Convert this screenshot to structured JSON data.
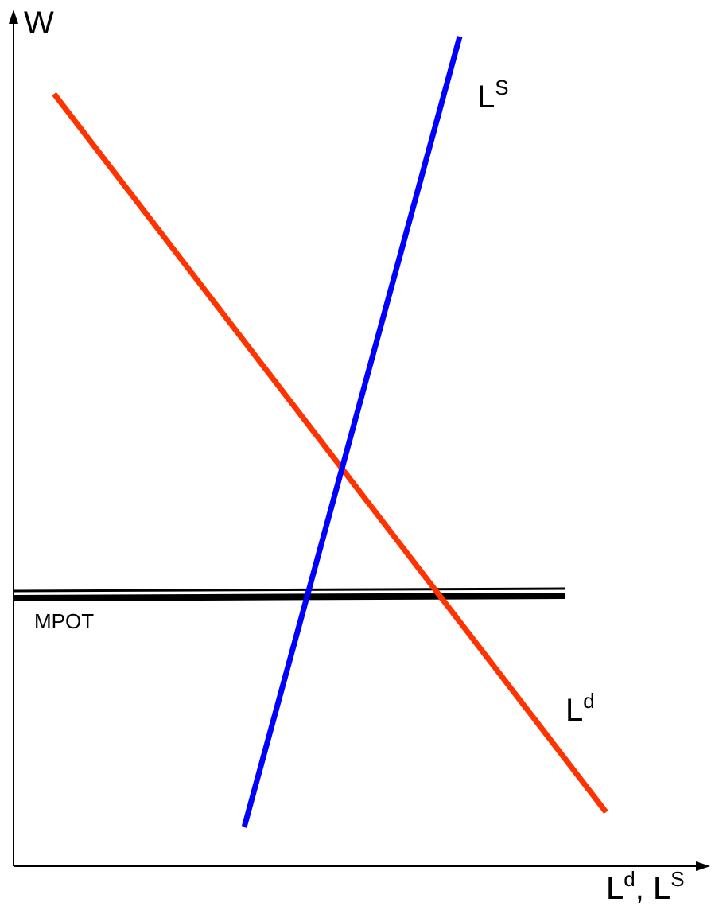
{
  "axes": {
    "y_label": "W",
    "x_label_main_1": "L",
    "x_label_sup_1": "d",
    "x_label_sep": ", L",
    "x_label_sup_2": "S"
  },
  "curves": {
    "supply": {
      "label": "L",
      "sup": "S",
      "color": "#0000ff"
    },
    "demand": {
      "label": "L",
      "sup": "d",
      "color": "#ff3300"
    },
    "mpot": {
      "label": "MPOT",
      "color": "#000000"
    }
  }
}
